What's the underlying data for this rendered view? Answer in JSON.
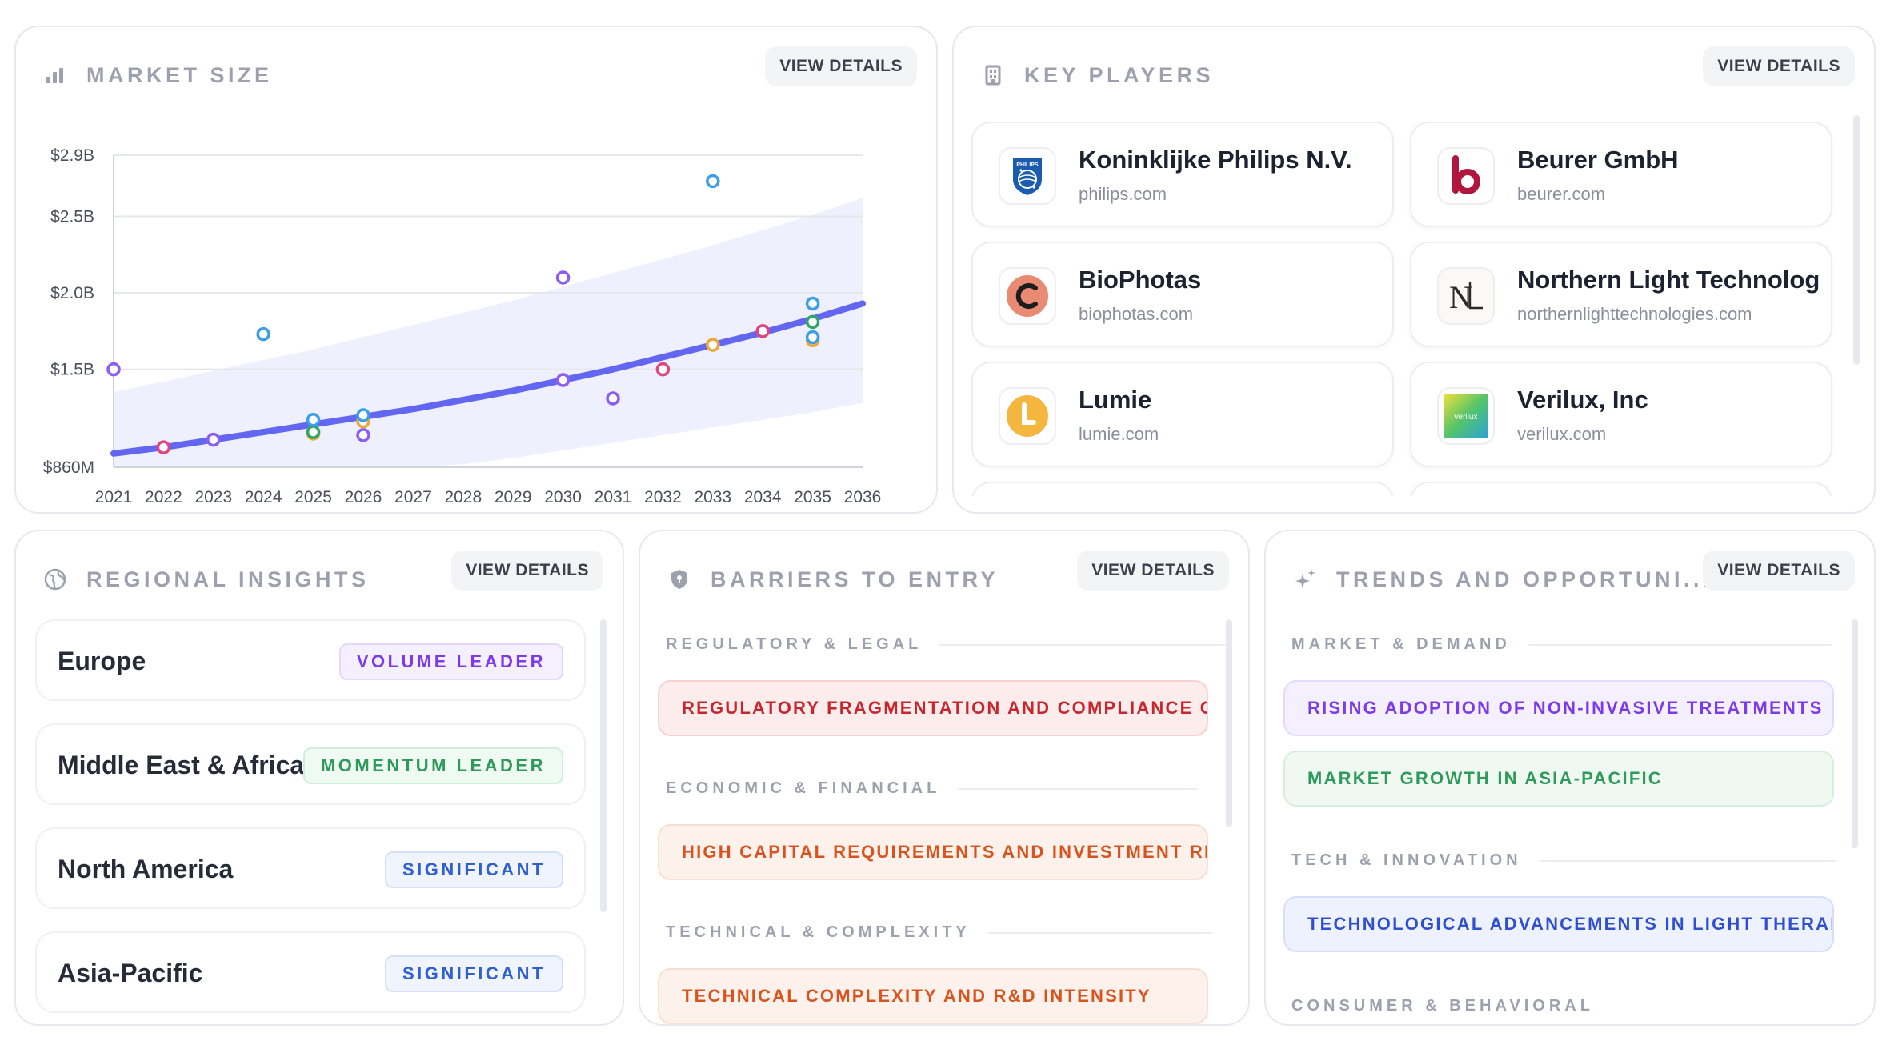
{
  "market_size": {
    "title": "MARKET SIZE",
    "view_details": "VIEW DETAILS",
    "icon": "bar-chart-icon"
  },
  "chart_data": {
    "type": "scatter",
    "title": "",
    "xlabel": "",
    "ylabel": "",
    "x_ticks": [
      "2021",
      "2022",
      "2023",
      "2024",
      "2025",
      "2026",
      "2027",
      "2028",
      "2029",
      "2030",
      "2031",
      "2032",
      "2033",
      "2034",
      "2035",
      "2036"
    ],
    "y_ticks": [
      {
        "label": "$860M",
        "value": 0.86
      },
      {
        "label": "$1.5B",
        "value": 1.5
      },
      {
        "label": "$2.0B",
        "value": 2.0
      },
      {
        "label": "$2.5B",
        "value": 2.5
      },
      {
        "label": "$2.9B",
        "value": 2.9
      }
    ],
    "ylim": [
      0.86,
      2.9
    ],
    "xlim": [
      2021,
      2036
    ],
    "grid": true,
    "trend_line": {
      "x": [
        2021,
        2022,
        2023,
        2024,
        2025,
        2026,
        2027,
        2028,
        2029,
        2030,
        2031,
        2032,
        2033,
        2034,
        2035,
        2036
      ],
      "y": [
        0.95,
        0.99,
        1.04,
        1.09,
        1.14,
        1.19,
        1.24,
        1.3,
        1.36,
        1.43,
        1.5,
        1.58,
        1.66,
        1.74,
        1.83,
        1.93
      ]
    },
    "band_upper": {
      "x": [
        2021,
        2022,
        2023,
        2024,
        2025,
        2026,
        2027,
        2028,
        2029,
        2030,
        2031,
        2032,
        2033,
        2034,
        2035,
        2036
      ],
      "y": [
        1.35,
        1.42,
        1.49,
        1.56,
        1.63,
        1.71,
        1.79,
        1.87,
        1.95,
        2.04,
        2.13,
        2.22,
        2.31,
        2.41,
        2.51,
        2.62
      ]
    },
    "band_lower": {
      "x": [
        2021,
        2022,
        2023,
        2024,
        2025,
        2026,
        2027,
        2028,
        2029,
        2030,
        2031,
        2032,
        2033,
        2034,
        2035,
        2036
      ],
      "y": [
        0.86,
        0.86,
        0.86,
        0.86,
        0.86,
        0.86,
        0.86,
        0.88,
        0.92,
        0.97,
        1.02,
        1.07,
        1.12,
        1.17,
        1.22,
        1.28
      ]
    },
    "points": [
      {
        "x": 2021,
        "y": 1.5,
        "color": "#8b5cf6"
      },
      {
        "x": 2022,
        "y": 0.99,
        "color": "#e1457e"
      },
      {
        "x": 2023,
        "y": 1.04,
        "color": "#8b5cf6"
      },
      {
        "x": 2024,
        "y": 1.73,
        "color": "#3b9ee6"
      },
      {
        "x": 2025,
        "y": 1.08,
        "color": "#eba83a"
      },
      {
        "x": 2025,
        "y": 1.09,
        "color": "#2fa56a"
      },
      {
        "x": 2025,
        "y": 1.17,
        "color": "#3b9ee6"
      },
      {
        "x": 2026,
        "y": 1.07,
        "color": "#8b5cf6"
      },
      {
        "x": 2026,
        "y": 1.16,
        "color": "#eba83a"
      },
      {
        "x": 2026,
        "y": 1.2,
        "color": "#3b9ee6"
      },
      {
        "x": 2030,
        "y": 2.1,
        "color": "#8b5cf6"
      },
      {
        "x": 2030,
        "y": 1.43,
        "color": "#8b5cf6"
      },
      {
        "x": 2031,
        "y": 1.31,
        "color": "#8b5cf6"
      },
      {
        "x": 2032,
        "y": 1.5,
        "color": "#e1457e"
      },
      {
        "x": 2033,
        "y": 1.66,
        "color": "#eba83a"
      },
      {
        "x": 2033,
        "y": 2.73,
        "color": "#3b9ee6"
      },
      {
        "x": 2034,
        "y": 1.75,
        "color": "#e1457e"
      },
      {
        "x": 2035,
        "y": 1.93,
        "color": "#3b9ee6"
      },
      {
        "x": 2035,
        "y": 1.81,
        "color": "#2fa56a"
      },
      {
        "x": 2035,
        "y": 1.69,
        "color": "#eba83a"
      },
      {
        "x": 2035,
        "y": 1.71,
        "color": "#3b9ee6"
      }
    ],
    "colors": {
      "trend": "#6366f1",
      "band": "#eef0fd",
      "grid": "#e5e7eb",
      "axis": "#cfd3da"
    }
  },
  "key_players": {
    "title": "KEY PLAYERS",
    "view_details": "VIEW DETAILS",
    "icon": "building-icon",
    "items": [
      {
        "name": "Koninklijke Philips N.V.",
        "domain": "philips.com",
        "logo": "philips-logo"
      },
      {
        "name": "Beurer GmbH",
        "domain": "beurer.com",
        "logo": "beurer-logo"
      },
      {
        "name": "BioPhotas",
        "domain": "biophotas.com",
        "logo": "biophotas-logo"
      },
      {
        "name": "Northern Light Technologies",
        "domain": "northernlighttechnologies.com",
        "logo": "northern-light-logo"
      },
      {
        "name": "Lumie",
        "domain": "lumie.com",
        "logo": "lumie-logo"
      },
      {
        "name": "Verilux, Inc",
        "domain": "verilux.com",
        "logo": "verilux-logo"
      }
    ]
  },
  "regional_insights": {
    "title": "REGIONAL INSIGHTS",
    "view_details": "VIEW DETAILS",
    "icon": "globe-icon",
    "items": [
      {
        "name": "Europe",
        "badge": "VOLUME LEADER",
        "badge_color": "#7c3aed",
        "badge_bg": "#f5f0ff",
        "badge_border": "#e3d7fb"
      },
      {
        "name": "Middle East & Africa",
        "badge": "MOMENTUM LEADER",
        "badge_color": "#2f9a5a",
        "badge_bg": "#effaf3",
        "badge_border": "#cfeedb"
      },
      {
        "name": "North America",
        "badge": "SIGNIFICANT",
        "badge_color": "#2f5fd0",
        "badge_bg": "#eff4fe",
        "badge_border": "#d4e0f8"
      },
      {
        "name": "Asia-Pacific",
        "badge": "SIGNIFICANT",
        "badge_color": "#2f5fd0",
        "badge_bg": "#eff4fe",
        "badge_border": "#d4e0f8"
      }
    ]
  },
  "barriers": {
    "title": "BARRIERS TO ENTRY",
    "view_details": "VIEW DETAILS",
    "icon": "shield-icon",
    "sections": [
      {
        "label": "REGULATORY & LEGAL",
        "item": "REGULATORY FRAGMENTATION AND COMPLIANCE CHALLENGES",
        "color": "#c8252c",
        "bg": "#fdecec",
        "border": "#f7d2d2"
      },
      {
        "label": "ECONOMIC & FINANCIAL",
        "item": "HIGH CAPITAL REQUIREMENTS AND INVESTMENT RISKS",
        "color": "#d9531e",
        "bg": "#fdf1ec",
        "border": "#f8dfd3"
      },
      {
        "label": "TECHNICAL & COMPLEXITY",
        "item": "TECHNICAL COMPLEXITY AND R&D INTENSITY",
        "color": "#d9531e",
        "bg": "#fdf1ec",
        "border": "#f8dfd3"
      }
    ]
  },
  "trends": {
    "title": "TRENDS AND OPPORTUNI...",
    "view_details": "VIEW DETAILS",
    "icon": "sparkles-icon",
    "sections": [
      {
        "label": "MARKET & DEMAND",
        "items": [
          {
            "text": "RISING ADOPTION OF NON-INVASIVE TREATMENTS",
            "color": "#7c3aed",
            "bg": "#f4f0ff",
            "border": "#e4dafb"
          },
          {
            "text": "MARKET GROWTH IN ASIA-PACIFIC",
            "color": "#2f9a5a",
            "bg": "#eff9f2",
            "border": "#d5eedd"
          }
        ]
      },
      {
        "label": "TECH & INNOVATION",
        "items": [
          {
            "text": "TECHNOLOGICAL ADVANCEMENTS IN LIGHT THERAPY",
            "color": "#2f4fd0",
            "bg": "#eef2fe",
            "border": "#d6defa"
          }
        ]
      },
      {
        "label": "CONSUMER & BEHAVIORAL",
        "items": []
      }
    ]
  }
}
